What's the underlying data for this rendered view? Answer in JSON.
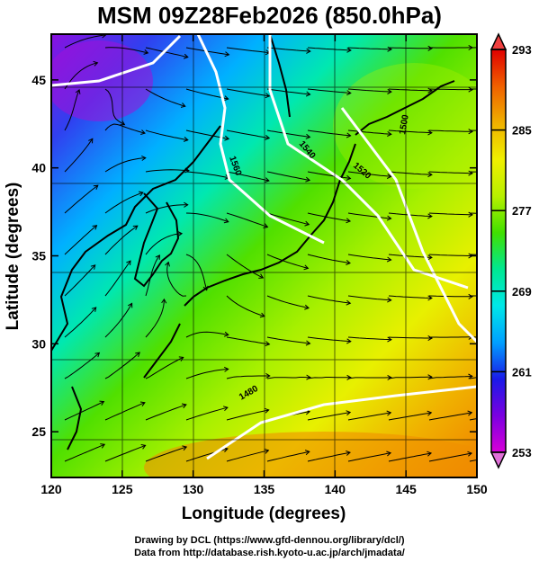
{
  "title": "MSM 09Z28Feb2026 (850.0hPa)",
  "x_axis": {
    "label": "Longitude (degrees)",
    "ticks": [
      120,
      125,
      130,
      135,
      140,
      145,
      150
    ],
    "range": [
      120,
      150
    ]
  },
  "y_axis": {
    "label": "Latitude  (degrees)",
    "ticks": [
      25,
      30,
      35,
      40,
      45
    ],
    "range": [
      22.4,
      47.6
    ]
  },
  "colorbar": {
    "ticks": [
      293,
      285,
      277,
      269,
      261,
      253
    ],
    "range": [
      253,
      293
    ],
    "colors": [
      "#d800d8",
      "#7a00e0",
      "#1a1ae8",
      "#00a0ff",
      "#00e8e8",
      "#00e890",
      "#40e000",
      "#b8f000",
      "#f0f000",
      "#f0b000",
      "#f06000",
      "#e00000"
    ]
  },
  "contour_labels": [
    "1560",
    "1540",
    "1520",
    "1500",
    "1480"
  ],
  "footer": {
    "line1": "Drawing by DCL (https://www.gfd-dennou.org/library/dcl/)",
    "line2": "Data from http://database.rish.kyoto-u.ac.jp/arch/jmadata/"
  }
}
